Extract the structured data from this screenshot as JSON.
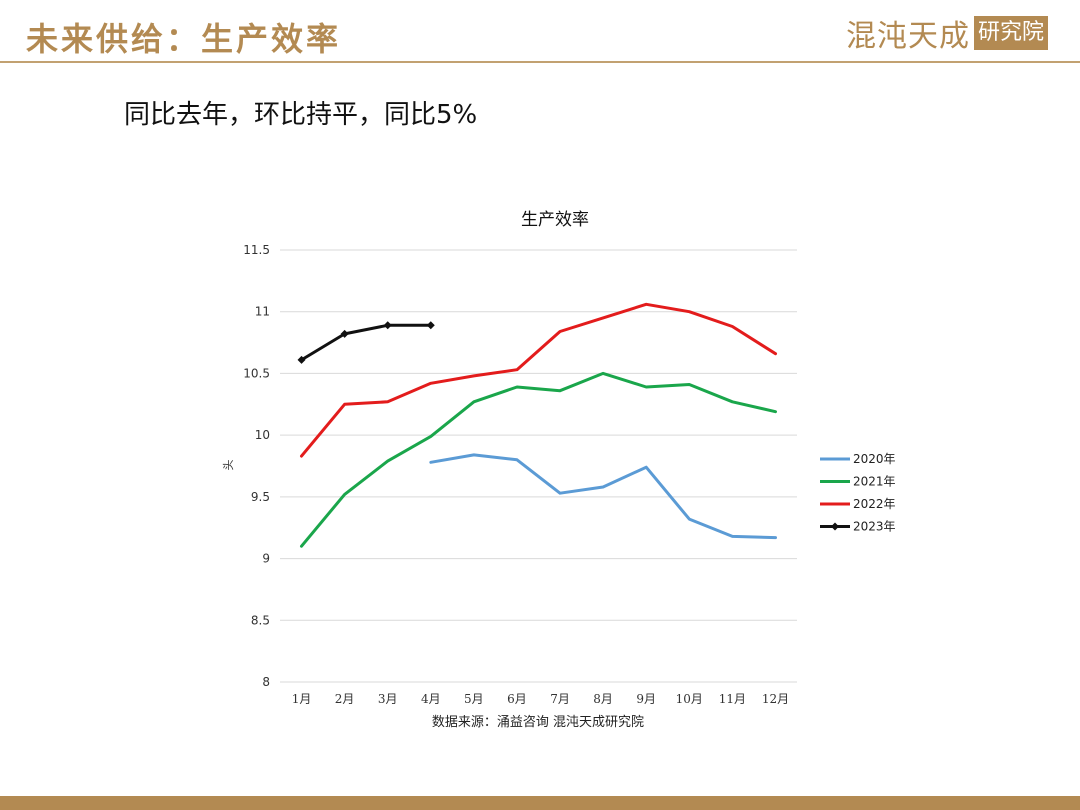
{
  "header": {
    "title": "未来供给：生产效率",
    "logo_text": "混沌天成",
    "logo_seal": "研究院"
  },
  "subtitle": "同比去年，环比持平，同比5%",
  "colors": {
    "accent": "#b38a52",
    "s2020": "#5b9bd5",
    "s2021": "#1aa64b",
    "s2022": "#e31c1c",
    "s2023": "#111111"
  },
  "chart_data": {
    "type": "line",
    "title": "生产效率",
    "ylabel": "头",
    "xlabel": "",
    "source": "数据来源：涌益咨询 混沌天成研究院",
    "ylim": [
      8,
      11.5
    ],
    "yticks": [
      "8",
      "8.5",
      "9",
      "9.5",
      "10",
      "10.5",
      "11",
      "11.5"
    ],
    "yticks_values": [
      8,
      8.5,
      9,
      9.5,
      10,
      10.5,
      11,
      11.5
    ],
    "grid": true,
    "legend_position": "right",
    "categories": [
      "1月",
      "2月",
      "3月",
      "4月",
      "5月",
      "6月",
      "7月",
      "8月",
      "9月",
      "10月",
      "11月",
      "12月"
    ],
    "series": [
      {
        "name": "2020年",
        "color": "#5b9bd5",
        "marker": false,
        "values": [
          null,
          null,
          null,
          9.78,
          9.84,
          9.8,
          9.53,
          9.58,
          9.74,
          9.32,
          9.18,
          9.17
        ]
      },
      {
        "name": "2021年",
        "color": "#1aa64b",
        "marker": false,
        "values": [
          9.1,
          9.52,
          9.79,
          9.99,
          10.27,
          10.39,
          10.36,
          10.5,
          10.39,
          10.41,
          10.27,
          10.19
        ]
      },
      {
        "name": "2022年",
        "color": "#e31c1c",
        "marker": false,
        "values": [
          9.83,
          10.25,
          10.27,
          10.42,
          10.48,
          10.53,
          10.84,
          10.95,
          11.06,
          11.0,
          10.88,
          10.66
        ]
      },
      {
        "name": "2023年",
        "color": "#111111",
        "marker": true,
        "values": [
          10.61,
          10.82,
          10.89,
          10.89,
          null,
          null,
          null,
          null,
          null,
          null,
          null,
          null
        ]
      }
    ]
  }
}
